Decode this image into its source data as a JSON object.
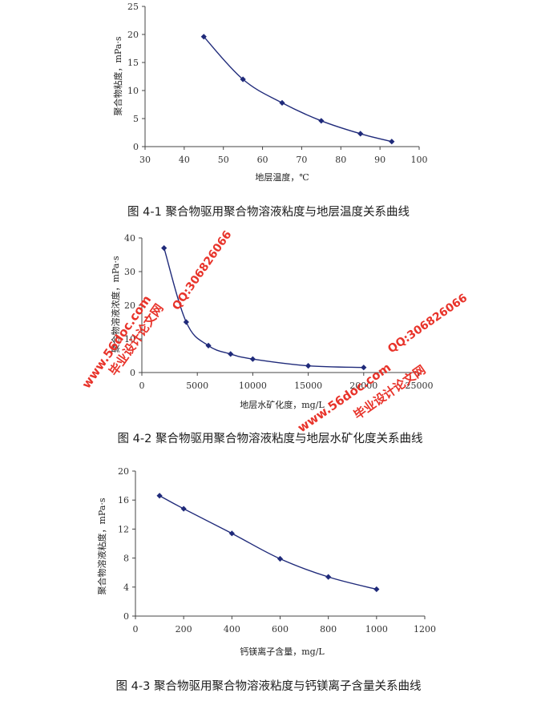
{
  "chart_data": [
    {
      "type": "line",
      "caption": "图 4-1 聚合物驱用聚合物溶液粘度与地层温度关系曲线",
      "xlabel": "地层温度，℃",
      "ylabel": "聚合物粘度，mPa·s",
      "xlim": [
        30,
        100
      ],
      "ylim": [
        0,
        25
      ],
      "xticks": [
        30,
        40,
        50,
        60,
        70,
        80,
        90,
        100
      ],
      "yticks": [
        0,
        5,
        10,
        15,
        20,
        25
      ],
      "grid": false,
      "marker": "diamond",
      "line_color": "#1f2a7a",
      "series": [
        {
          "x": [
            45,
            55,
            65,
            75,
            85,
            93
          ],
          "y": [
            19.6,
            12.0,
            7.8,
            4.6,
            2.3,
            0.9
          ]
        }
      ]
    },
    {
      "type": "line",
      "caption": "图 4-2 聚合物驱用聚合物溶液粘度与地层水矿化度关系曲线",
      "xlabel": "地层水矿化度，mg/L",
      "ylabel": "聚合物溶液浓度，mPa·s",
      "xlim": [
        0,
        25000
      ],
      "ylim": [
        0,
        40
      ],
      "xticks": [
        0,
        5000,
        10000,
        15000,
        20000,
        25000
      ],
      "yticks": [
        0,
        10,
        20,
        30,
        40
      ],
      "grid": false,
      "marker": "diamond",
      "line_color": "#1f2a7a",
      "series": [
        {
          "x": [
            2000,
            4000,
            6000,
            8000,
            10000,
            15000,
            20000
          ],
          "y": [
            37,
            15,
            8,
            5.5,
            4,
            2,
            1.5
          ]
        }
      ]
    },
    {
      "type": "line",
      "caption": "图 4-3 聚合物驱用聚合物溶液粘度与钙镁离子含量关系曲线",
      "xlabel": "钙镁离子含量，mg/L",
      "ylabel": "聚合物溶液粘度，mPa·s",
      "xlim": [
        0,
        1200
      ],
      "ylim": [
        0,
        20
      ],
      "xticks": [
        0,
        200,
        400,
        600,
        800,
        1000,
        1200
      ],
      "yticks": [
        0,
        4,
        8,
        12,
        16,
        20
      ],
      "grid": false,
      "marker": "diamond",
      "line_color": "#1f2a7a",
      "series": [
        {
          "x": [
            100,
            200,
            400,
            600,
            800,
            1000
          ],
          "y": [
            16.6,
            14.8,
            11.4,
            7.9,
            5.4,
            3.7
          ]
        }
      ]
    }
  ],
  "watermark": {
    "site": "www.56doc.com",
    "qq": "QQ:306826066",
    "name": "毕业设计论文网",
    "color": "#e8332a"
  }
}
